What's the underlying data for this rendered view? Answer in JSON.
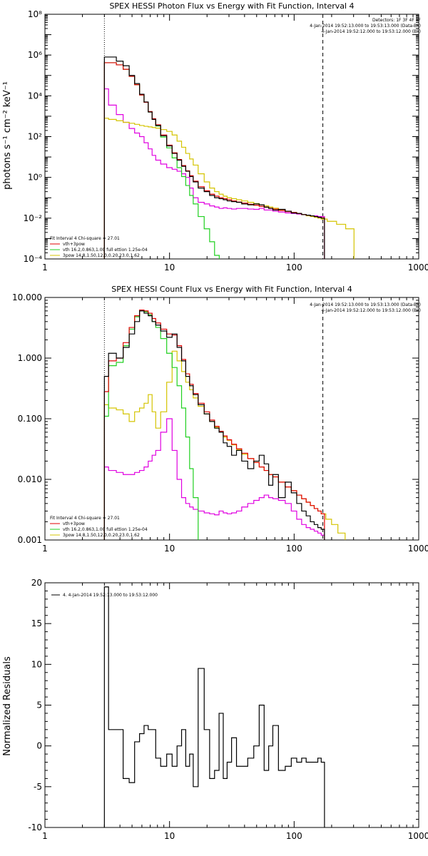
{
  "chart_data": [
    {
      "type": "line",
      "title": "SPEX HESSI Photon Flux vs Energy with Fit Function, Interval 4",
      "xlabel": "",
      "ylabel": "photons s⁻¹ cm⁻² keV⁻¹",
      "xscale": "log",
      "yscale": "log",
      "xlim": [
        1,
        1000
      ],
      "ylim": [
        0.0001,
        100000000
      ],
      "x_ticks": [
        "1",
        "10",
        "100",
        "1000"
      ],
      "y_ticks": [
        "10⁻⁴",
        "10⁻²",
        "10⁰",
        "10²",
        "10⁴",
        "10⁶",
        "10⁸"
      ],
      "vlines": [
        3,
        170
      ],
      "info_top_right": [
        "Detectors: 1F 3F 4F 8F",
        "4-Jan-2014 19:52:13.000 to 19:53:13.000 (Data-Bk)",
        "4-Jan-2014 19:52:12.000 to 19:53:12.000 (Bk)"
      ],
      "legend_header": "Fit Interval 4   Chi-square = 27.01",
      "legend": [
        "vth+3pow",
        "vth 16.2,0.863,1.00  full ettion 1.25e-04",
        "3pow  14.8,1.50,12.0,0.20,23.0,1.62"
      ],
      "series": [
        {
          "name": "Data-Bk",
          "color": "#000000",
          "x": [
            3,
            3.5,
            4,
            4.5,
            5,
            5.5,
            6,
            6.5,
            7,
            7.5,
            8,
            9,
            10,
            11,
            12,
            13,
            14,
            15,
            16,
            18,
            20,
            22,
            24,
            26,
            28,
            30,
            33,
            36,
            40,
            45,
            50,
            55,
            60,
            65,
            70,
            80,
            90,
            100,
            110,
            120,
            130,
            140,
            150,
            160,
            170
          ],
          "y": [
            800000,
            800000,
            500000,
            300000,
            100000,
            40000,
            12000,
            5000,
            1600,
            700,
            350,
            110,
            35,
            15,
            7,
            3.5,
            2,
            1.1,
            0.6,
            0.3,
            0.2,
            0.13,
            0.1,
            0.09,
            0.08,
            0.07,
            0.065,
            0.06,
            0.05,
            0.045,
            0.05,
            0.045,
            0.035,
            0.03,
            0.025,
            0.027,
            0.022,
            0.018,
            0.017,
            0.015,
            0.014,
            0.013,
            0.012,
            0.011,
            0.01
          ]
        },
        {
          "name": "vth+3pow",
          "color": "#e00000",
          "x": [
            3,
            3.5,
            4,
            4.5,
            5,
            5.5,
            6,
            6.5,
            7,
            7.5,
            8,
            9,
            10,
            11,
            12,
            13,
            14,
            15,
            16,
            18,
            20,
            22,
            24,
            26,
            28,
            30,
            33,
            36,
            40,
            45,
            50,
            55,
            60,
            65,
            70,
            80,
            90,
            100,
            110,
            120,
            130,
            140,
            150,
            160,
            170
          ],
          "y": [
            420000,
            420000,
            330000,
            200000,
            90000,
            35000,
            11000,
            4800,
            1700,
            750,
            380,
            120,
            38,
            16,
            7.5,
            3.8,
            2.1,
            1.2,
            0.65,
            0.35,
            0.22,
            0.15,
            0.12,
            0.1,
            0.09,
            0.08,
            0.07,
            0.062,
            0.055,
            0.048,
            0.043,
            0.038,
            0.034,
            0.031,
            0.028,
            0.024,
            0.021,
            0.019,
            0.017,
            0.015,
            0.014,
            0.013,
            0.012,
            0.011,
            0.0105
          ]
        },
        {
          "name": "vth",
          "color": "#20d020",
          "x": [
            3,
            3.5,
            4,
            4.5,
            5,
            5.5,
            6,
            6.5,
            7,
            7.5,
            8,
            9,
            10,
            11,
            12,
            13,
            14,
            15,
            16,
            18,
            20,
            22,
            24
          ],
          "y": [
            420000,
            420000,
            330000,
            200000,
            90000,
            35000,
            11000,
            4800,
            1600,
            700,
            330,
            95,
            28,
            9,
            3,
            1.1,
            0.4,
            0.13,
            0.05,
            0.012,
            0.003,
            0.0007,
            0.00015
          ]
        },
        {
          "name": "3pow",
          "color": "#d4c400",
          "x": [
            3,
            3.5,
            4,
            4.5,
            5,
            5.5,
            6,
            6.5,
            7,
            7.5,
            8,
            9,
            10,
            11,
            12,
            13,
            14,
            15,
            16,
            18,
            20,
            22,
            24,
            26,
            28,
            30,
            33,
            36,
            40,
            45,
            50,
            55,
            60,
            65,
            70,
            80,
            90,
            100,
            110,
            120,
            130,
            140,
            150,
            160,
            170,
            200,
            240,
            280
          ],
          "y": [
            800,
            700,
            600,
            500,
            450,
            400,
            350,
            320,
            300,
            280,
            260,
            220,
            180,
            120,
            60,
            30,
            15,
            8,
            4,
            1.5,
            0.6,
            0.3,
            0.2,
            0.15,
            0.12,
            0.1,
            0.09,
            0.08,
            0.07,
            0.06,
            0.052,
            0.045,
            0.04,
            0.035,
            0.031,
            0.026,
            0.022,
            0.019,
            0.017,
            0.015,
            0.013,
            0.012,
            0.011,
            0.01,
            0.009,
            0.007,
            0.005,
            0.003
          ]
        },
        {
          "name": "Bk",
          "color": "#e000e0",
          "x": [
            3,
            3.5,
            4,
            4.5,
            5,
            5.5,
            6,
            6.5,
            7,
            7.5,
            8,
            9,
            10,
            11,
            12,
            13,
            14,
            15,
            16,
            18,
            20,
            22,
            24,
            26,
            28,
            30,
            33,
            36,
            40,
            45,
            50,
            55,
            60,
            65,
            70,
            80,
            90,
            100,
            110,
            120,
            130,
            140,
            150,
            160,
            170
          ],
          "y": [
            22000,
            3500,
            1200,
            500,
            250,
            150,
            100,
            50,
            25,
            12,
            7,
            4.5,
            3,
            2.5,
            2,
            1.5,
            1,
            0.3,
            0.1,
            0.06,
            0.05,
            0.04,
            0.035,
            0.03,
            0.032,
            0.03,
            0.028,
            0.03,
            0.03,
            0.028,
            0.027,
            0.03,
            0.025,
            0.025,
            0.022,
            0.02,
            0.018,
            0.017,
            0.016,
            0.015,
            0.014,
            0.013,
            0.013,
            0.012,
            0.012
          ]
        }
      ]
    },
    {
      "type": "line",
      "title": "SPEX HESSI Count Flux vs Energy with Fit Function, Interval 4",
      "xlabel": "",
      "ylabel": "",
      "xscale": "log",
      "yscale": "log",
      "xlim": [
        1,
        1000
      ],
      "ylim": [
        0.001,
        10
      ],
      "x_ticks": [
        "1",
        "10",
        "100",
        "1000"
      ],
      "y_ticks": [
        "0.001",
        "0.010",
        "0.100",
        "1.000",
        "10.000"
      ],
      "vlines": [
        3,
        170
      ],
      "info_top_right": [
        "4-Jan-2014 19:52:13.000 to 19:53:13.000 (Data-Bk)",
        "4-Jan-2014 19:52:12.000 to 19:53:12.000 (Bk)"
      ],
      "legend_header": "Fit Interval 4   Chi-square = 27.01",
      "legend": [
        "vth+3pow",
        "vth 16.2,0.863,1.00  full ettion 1.25e-04",
        "3pow  14.8,1.50,12.0,0.20,23.0,1.62"
      ],
      "series": [
        {
          "name": "Data-Bk",
          "color": "#000000",
          "x": [
            3,
            3.5,
            4,
            4.5,
            5,
            5.5,
            6,
            6.5,
            7,
            7.5,
            8,
            9,
            10,
            11,
            12,
            13,
            14,
            15,
            16,
            18,
            20,
            22,
            24,
            26,
            28,
            30,
            33,
            36,
            40,
            45,
            50,
            55,
            60,
            65,
            70,
            80,
            90,
            100,
            110,
            120,
            130,
            140,
            150,
            160,
            170
          ],
          "y": [
            0.5,
            1.2,
            1.0,
            1.5,
            2.5,
            4,
            6,
            5.5,
            5,
            4,
            3.5,
            2.8,
            2.2,
            2.5,
            1.5,
            0.9,
            0.5,
            0.35,
            0.25,
            0.17,
            0.12,
            0.09,
            0.07,
            0.06,
            0.04,
            0.035,
            0.025,
            0.03,
            0.02,
            0.015,
            0.02,
            0.025,
            0.018,
            0.008,
            0.012,
            0.005,
            0.009,
            0.006,
            0.004,
            0.003,
            0.0025,
            0.002,
            0.0018,
            0.0016,
            0.0015
          ]
        },
        {
          "name": "vth+3pow",
          "color": "#e00000",
          "x": [
            3,
            3.5,
            4,
            4.5,
            5,
            5.5,
            6,
            6.5,
            7,
            7.5,
            8,
            9,
            10,
            11,
            12,
            13,
            14,
            15,
            16,
            18,
            20,
            22,
            24,
            26,
            28,
            30,
            33,
            36,
            40,
            45,
            50,
            55,
            60,
            65,
            70,
            80,
            90,
            100,
            110,
            120,
            130,
            140,
            150,
            160,
            170
          ],
          "y": [
            0.28,
            0.9,
            1.0,
            1.8,
            3.2,
            5,
            6.2,
            6,
            5.5,
            4.5,
            3.8,
            3,
            2.5,
            2.4,
            1.6,
            0.95,
            0.55,
            0.37,
            0.26,
            0.18,
            0.13,
            0.095,
            0.075,
            0.062,
            0.052,
            0.045,
            0.038,
            0.032,
            0.027,
            0.022,
            0.019,
            0.016,
            0.014,
            0.012,
            0.011,
            0.009,
            0.0075,
            0.0065,
            0.0055,
            0.0048,
            0.0042,
            0.0037,
            0.0033,
            0.003,
            0.0027
          ]
        },
        {
          "name": "vth",
          "color": "#20d020",
          "x": [
            3,
            3.5,
            4,
            4.5,
            5,
            5.5,
            6,
            6.5,
            7,
            7.5,
            8,
            9,
            10,
            11,
            12,
            13,
            14,
            15,
            16,
            18
          ],
          "y": [
            0.11,
            0.75,
            0.85,
            1.6,
            3,
            4.8,
            6.1,
            5.8,
            5.2,
            4,
            3.2,
            2.1,
            1.2,
            0.7,
            0.35,
            0.15,
            0.05,
            0.015,
            0.005,
            0.0008
          ]
        },
        {
          "name": "3pow",
          "color": "#d4c400",
          "x": [
            3,
            3.5,
            4,
            4.5,
            5,
            5.5,
            6,
            6.5,
            7,
            7.5,
            8,
            9,
            10,
            11,
            12,
            13,
            14,
            15,
            16,
            18,
            20,
            22,
            24,
            26,
            28,
            30,
            33,
            36,
            40,
            45,
            50,
            55,
            60,
            65,
            70,
            80,
            90,
            100,
            110,
            120,
            130,
            140,
            150,
            160,
            170,
            190,
            210,
            240
          ],
          "y": [
            0.17,
            0.15,
            0.14,
            0.12,
            0.09,
            0.13,
            0.15,
            0.18,
            0.25,
            0.13,
            0.07,
            0.13,
            0.4,
            1.3,
            0.9,
            0.6,
            0.4,
            0.3,
            0.22,
            0.16,
            0.12,
            0.09,
            0.072,
            0.06,
            0.05,
            0.044,
            0.037,
            0.031,
            0.026,
            0.022,
            0.019,
            0.016,
            0.014,
            0.012,
            0.011,
            0.009,
            0.0075,
            0.0065,
            0.0055,
            0.0048,
            0.0042,
            0.0037,
            0.0033,
            0.003,
            0.0027,
            0.0022,
            0.0018,
            0.0013
          ]
        },
        {
          "name": "Bk",
          "color": "#e000e0",
          "x": [
            3,
            3.5,
            4,
            4.5,
            5,
            5.5,
            6,
            6.5,
            7,
            7.5,
            8,
            9,
            10,
            11,
            12,
            13,
            14,
            15,
            16,
            18,
            20,
            22,
            24,
            26,
            28,
            30,
            33,
            36,
            40,
            45,
            50,
            55,
            60,
            65,
            70,
            80,
            90,
            100,
            110,
            120,
            130,
            140,
            150,
            160,
            170
          ],
          "y": [
            0.016,
            0.014,
            0.013,
            0.012,
            0.012,
            0.013,
            0.014,
            0.016,
            0.02,
            0.025,
            0.03,
            0.06,
            0.1,
            0.03,
            0.01,
            0.005,
            0.004,
            0.0035,
            0.0032,
            0.003,
            0.0028,
            0.0027,
            0.0026,
            0.003,
            0.0028,
            0.0027,
            0.0028,
            0.003,
            0.0035,
            0.004,
            0.0045,
            0.005,
            0.0055,
            0.005,
            0.0048,
            0.0045,
            0.004,
            0.003,
            0.0022,
            0.0018,
            0.0016,
            0.0015,
            0.0014,
            0.0013,
            0.0012
          ]
        }
      ]
    },
    {
      "type": "line",
      "title": "",
      "xlabel": "",
      "ylabel": "Normalized Residuals",
      "xscale": "log",
      "yscale": "linear",
      "xlim": [
        1,
        1000
      ],
      "ylim": [
        -10,
        20
      ],
      "x_ticks": [
        "1",
        "10",
        "100",
        "1000"
      ],
      "y_ticks": [
        "-10",
        "-5",
        "0",
        "5",
        "10",
        "15",
        "20"
      ],
      "legend": [
        "4.  4-Jan-2014 19:52:13.000 to 19:53:12.000"
      ],
      "series": [
        {
          "name": "4.  4-Jan-2014 19:52:13.000 to 19:53:12.000",
          "color": "#000000",
          "x": [
            3,
            3.5,
            4,
            4.5,
            5,
            5.5,
            6,
            6.5,
            7,
            7.5,
            8,
            9,
            10,
            11,
            12,
            13,
            14,
            15,
            16,
            18,
            20,
            22,
            24,
            26,
            28,
            30,
            33,
            36,
            40,
            45,
            50,
            55,
            60,
            65,
            70,
            80,
            90,
            100,
            110,
            120,
            130,
            140,
            150,
            160,
            170
          ],
          "y": [
            19.5,
            2,
            2,
            -4,
            -4.5,
            0.5,
            1.5,
            2.5,
            2,
            2,
            -1.5,
            -2.5,
            -1,
            -2.5,
            0,
            2,
            -2.5,
            -1,
            -5,
            9.5,
            2,
            -4,
            -3,
            4,
            -4,
            -2,
            1,
            -2.5,
            -2.5,
            -1.5,
            0,
            5,
            -3,
            0,
            2.5,
            -3,
            -2.5,
            -1.5,
            -2,
            -1.5,
            -2,
            -2,
            -2,
            -1.5,
            -2
          ]
        }
      ]
    }
  ]
}
